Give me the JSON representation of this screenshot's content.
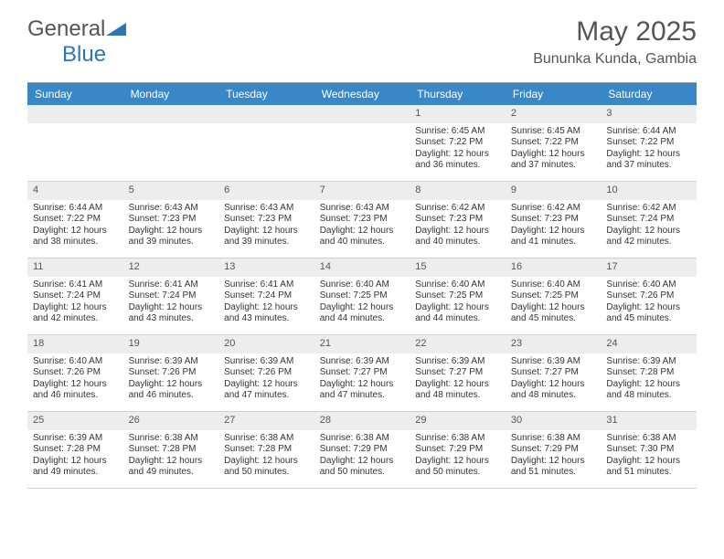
{
  "logo": {
    "word1": "General",
    "word2": "Blue"
  },
  "title": {
    "month": "May 2025",
    "location": "Bununka Kunda, Gambia"
  },
  "colors": {
    "header_bg": "#3a87c8",
    "header_text": "#ffffff",
    "daynum_bg": "#ededed",
    "cell_border": "#cfcfcf",
    "body_text": "#333333",
    "logo_blue": "#2e75b6",
    "logo_gray": "#555555"
  },
  "day_names": [
    "Sunday",
    "Monday",
    "Tuesday",
    "Wednesday",
    "Thursday",
    "Friday",
    "Saturday"
  ],
  "weeks": [
    [
      null,
      null,
      null,
      null,
      {
        "n": "1",
        "sr": "Sunrise: 6:45 AM",
        "ss": "Sunset: 7:22 PM",
        "dl1": "Daylight: 12 hours",
        "dl2": "and 36 minutes."
      },
      {
        "n": "2",
        "sr": "Sunrise: 6:45 AM",
        "ss": "Sunset: 7:22 PM",
        "dl1": "Daylight: 12 hours",
        "dl2": "and 37 minutes."
      },
      {
        "n": "3",
        "sr": "Sunrise: 6:44 AM",
        "ss": "Sunset: 7:22 PM",
        "dl1": "Daylight: 12 hours",
        "dl2": "and 37 minutes."
      }
    ],
    [
      {
        "n": "4",
        "sr": "Sunrise: 6:44 AM",
        "ss": "Sunset: 7:22 PM",
        "dl1": "Daylight: 12 hours",
        "dl2": "and 38 minutes."
      },
      {
        "n": "5",
        "sr": "Sunrise: 6:43 AM",
        "ss": "Sunset: 7:23 PM",
        "dl1": "Daylight: 12 hours",
        "dl2": "and 39 minutes."
      },
      {
        "n": "6",
        "sr": "Sunrise: 6:43 AM",
        "ss": "Sunset: 7:23 PM",
        "dl1": "Daylight: 12 hours",
        "dl2": "and 39 minutes."
      },
      {
        "n": "7",
        "sr": "Sunrise: 6:43 AM",
        "ss": "Sunset: 7:23 PM",
        "dl1": "Daylight: 12 hours",
        "dl2": "and 40 minutes."
      },
      {
        "n": "8",
        "sr": "Sunrise: 6:42 AM",
        "ss": "Sunset: 7:23 PM",
        "dl1": "Daylight: 12 hours",
        "dl2": "and 40 minutes."
      },
      {
        "n": "9",
        "sr": "Sunrise: 6:42 AM",
        "ss": "Sunset: 7:23 PM",
        "dl1": "Daylight: 12 hours",
        "dl2": "and 41 minutes."
      },
      {
        "n": "10",
        "sr": "Sunrise: 6:42 AM",
        "ss": "Sunset: 7:24 PM",
        "dl1": "Daylight: 12 hours",
        "dl2": "and 42 minutes."
      }
    ],
    [
      {
        "n": "11",
        "sr": "Sunrise: 6:41 AM",
        "ss": "Sunset: 7:24 PM",
        "dl1": "Daylight: 12 hours",
        "dl2": "and 42 minutes."
      },
      {
        "n": "12",
        "sr": "Sunrise: 6:41 AM",
        "ss": "Sunset: 7:24 PM",
        "dl1": "Daylight: 12 hours",
        "dl2": "and 43 minutes."
      },
      {
        "n": "13",
        "sr": "Sunrise: 6:41 AM",
        "ss": "Sunset: 7:24 PM",
        "dl1": "Daylight: 12 hours",
        "dl2": "and 43 minutes."
      },
      {
        "n": "14",
        "sr": "Sunrise: 6:40 AM",
        "ss": "Sunset: 7:25 PM",
        "dl1": "Daylight: 12 hours",
        "dl2": "and 44 minutes."
      },
      {
        "n": "15",
        "sr": "Sunrise: 6:40 AM",
        "ss": "Sunset: 7:25 PM",
        "dl1": "Daylight: 12 hours",
        "dl2": "and 44 minutes."
      },
      {
        "n": "16",
        "sr": "Sunrise: 6:40 AM",
        "ss": "Sunset: 7:25 PM",
        "dl1": "Daylight: 12 hours",
        "dl2": "and 45 minutes."
      },
      {
        "n": "17",
        "sr": "Sunrise: 6:40 AM",
        "ss": "Sunset: 7:26 PM",
        "dl1": "Daylight: 12 hours",
        "dl2": "and 45 minutes."
      }
    ],
    [
      {
        "n": "18",
        "sr": "Sunrise: 6:40 AM",
        "ss": "Sunset: 7:26 PM",
        "dl1": "Daylight: 12 hours",
        "dl2": "and 46 minutes."
      },
      {
        "n": "19",
        "sr": "Sunrise: 6:39 AM",
        "ss": "Sunset: 7:26 PM",
        "dl1": "Daylight: 12 hours",
        "dl2": "and 46 minutes."
      },
      {
        "n": "20",
        "sr": "Sunrise: 6:39 AM",
        "ss": "Sunset: 7:26 PM",
        "dl1": "Daylight: 12 hours",
        "dl2": "and 47 minutes."
      },
      {
        "n": "21",
        "sr": "Sunrise: 6:39 AM",
        "ss": "Sunset: 7:27 PM",
        "dl1": "Daylight: 12 hours",
        "dl2": "and 47 minutes."
      },
      {
        "n": "22",
        "sr": "Sunrise: 6:39 AM",
        "ss": "Sunset: 7:27 PM",
        "dl1": "Daylight: 12 hours",
        "dl2": "and 48 minutes."
      },
      {
        "n": "23",
        "sr": "Sunrise: 6:39 AM",
        "ss": "Sunset: 7:27 PM",
        "dl1": "Daylight: 12 hours",
        "dl2": "and 48 minutes."
      },
      {
        "n": "24",
        "sr": "Sunrise: 6:39 AM",
        "ss": "Sunset: 7:28 PM",
        "dl1": "Daylight: 12 hours",
        "dl2": "and 48 minutes."
      }
    ],
    [
      {
        "n": "25",
        "sr": "Sunrise: 6:39 AM",
        "ss": "Sunset: 7:28 PM",
        "dl1": "Daylight: 12 hours",
        "dl2": "and 49 minutes."
      },
      {
        "n": "26",
        "sr": "Sunrise: 6:38 AM",
        "ss": "Sunset: 7:28 PM",
        "dl1": "Daylight: 12 hours",
        "dl2": "and 49 minutes."
      },
      {
        "n": "27",
        "sr": "Sunrise: 6:38 AM",
        "ss": "Sunset: 7:28 PM",
        "dl1": "Daylight: 12 hours",
        "dl2": "and 50 minutes."
      },
      {
        "n": "28",
        "sr": "Sunrise: 6:38 AM",
        "ss": "Sunset: 7:29 PM",
        "dl1": "Daylight: 12 hours",
        "dl2": "and 50 minutes."
      },
      {
        "n": "29",
        "sr": "Sunrise: 6:38 AM",
        "ss": "Sunset: 7:29 PM",
        "dl1": "Daylight: 12 hours",
        "dl2": "and 50 minutes."
      },
      {
        "n": "30",
        "sr": "Sunrise: 6:38 AM",
        "ss": "Sunset: 7:29 PM",
        "dl1": "Daylight: 12 hours",
        "dl2": "and 51 minutes."
      },
      {
        "n": "31",
        "sr": "Sunrise: 6:38 AM",
        "ss": "Sunset: 7:30 PM",
        "dl1": "Daylight: 12 hours",
        "dl2": "and 51 minutes."
      }
    ]
  ]
}
